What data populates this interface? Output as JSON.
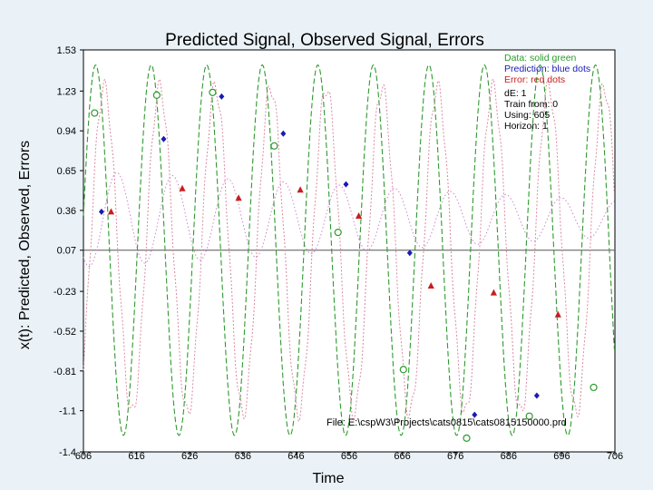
{
  "chart_data": {
    "type": "line",
    "title": "Predicted Signal, Observed Signal, Errors",
    "xlabel": "Time",
    "ylabel": "x(t): Predicted, Observed, Errors",
    "xlim": [
      606,
      706
    ],
    "ylim": [
      -1.4,
      1.53
    ],
    "x_ticks": [
      "606",
      "616",
      "626",
      "636",
      "646",
      "656",
      "666",
      "676",
      "686",
      "696",
      "706"
    ],
    "y_ticks": [
      {
        "label": "1.53",
        "value": 1.53
      },
      {
        "label": "1.23",
        "value": 1.23
      },
      {
        "label": "0.94",
        "value": 0.94
      },
      {
        "label": "0.65",
        "value": 0.65
      },
      {
        "label": "0.36",
        "value": 0.36
      },
      {
        "label": "0.07",
        "value": 0.07
      },
      {
        "label": "-0.23",
        "value": -0.23
      },
      {
        "label": "-0.52",
        "value": -0.52
      },
      {
        "label": "-0.81",
        "value": -0.81
      },
      {
        "label": "-1.1",
        "value": -1.1
      },
      {
        "label": "-1.4",
        "value": -1.4
      }
    ],
    "zero_line": 0.07,
    "legend": {
      "placement": "top-right",
      "entries": [
        {
          "text": "Data: solid green",
          "color": "#2e9a2e"
        },
        {
          "text": "Prediction: blue dots",
          "color": "#1a1ab4"
        },
        {
          "text": "Error: red dots",
          "color": "#c81e1e"
        }
      ]
    },
    "info": [
      "dE: 1",
      "Train from: 0",
      "Using: 605",
      "Horizon: 1"
    ],
    "file_label": "File: E:\\cspW3\\Projects\\cats0815\\cats0815150000.prd",
    "signal_model": {
      "period": 10.45,
      "phase_peak_x": 608.3,
      "amplitude": 1.35,
      "offset": 0.07
    },
    "series": [
      {
        "name": "Data",
        "color": "#2e9a2e",
        "style": "dashed-line",
        "markers": [
          {
            "x": 608.1,
            "y": 1.07
          },
          {
            "x": 619.8,
            "y": 1.2
          },
          {
            "x": 630.3,
            "y": 1.22
          },
          {
            "x": 641.9,
            "y": 0.83
          },
          {
            "x": 653.9,
            "y": 0.2
          },
          {
            "x": 666.2,
            "y": -0.8
          },
          {
            "x": 678.1,
            "y": -1.3
          },
          {
            "x": 689.9,
            "y": -1.14
          },
          {
            "x": 702.0,
            "y": -0.93
          }
        ]
      },
      {
        "name": "Prediction",
        "color": "#1a1ab4",
        "style": "diamond",
        "points": [
          {
            "x": 609.4,
            "y": 0.35
          },
          {
            "x": 621.1,
            "y": 0.88
          },
          {
            "x": 632.0,
            "y": 1.19
          },
          {
            "x": 643.6,
            "y": 0.92
          },
          {
            "x": 655.4,
            "y": 0.55
          },
          {
            "x": 667.4,
            "y": 0.05
          },
          {
            "x": 679.6,
            "y": -1.13
          },
          {
            "x": 691.3,
            "y": -0.99
          }
        ]
      },
      {
        "name": "Error",
        "color": "#c81e1e",
        "style": "triangle",
        "points": [
          {
            "x": 611.2,
            "y": 0.35
          },
          {
            "x": 624.6,
            "y": 0.52
          },
          {
            "x": 635.2,
            "y": 0.45
          },
          {
            "x": 646.8,
            "y": 0.51
          },
          {
            "x": 657.8,
            "y": 0.32
          },
          {
            "x": 671.4,
            "y": -0.19
          },
          {
            "x": 683.2,
            "y": -0.24
          },
          {
            "x": 695.3,
            "y": -0.4
          }
        ]
      }
    ]
  }
}
